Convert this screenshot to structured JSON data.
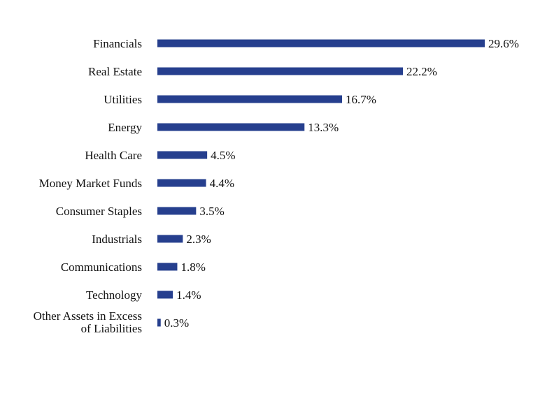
{
  "chart_data": {
    "type": "bar",
    "orientation": "horizontal",
    "categories": [
      "Financials",
      "Real Estate",
      "Utilities",
      "Energy",
      "Health Care",
      "Money Market Funds",
      "Consumer Staples",
      "Industrials",
      "Communications",
      "Technology",
      "Other Assets in Excess of Liabilities"
    ],
    "values": [
      29.6,
      22.2,
      16.7,
      13.3,
      4.5,
      4.4,
      3.5,
      2.3,
      1.8,
      1.4,
      0.3
    ],
    "value_labels": [
      "29.6%",
      "22.2%",
      "16.7%",
      "13.3%",
      "4.5%",
      "4.4%",
      "3.5%",
      "2.3%",
      "1.8%",
      "1.4%",
      "0.3%"
    ],
    "title": "",
    "xlabel": "",
    "ylabel": "",
    "xlim": [
      0,
      29.6
    ],
    "grid": false,
    "legend": "none",
    "bar_color": "#263f8e"
  }
}
